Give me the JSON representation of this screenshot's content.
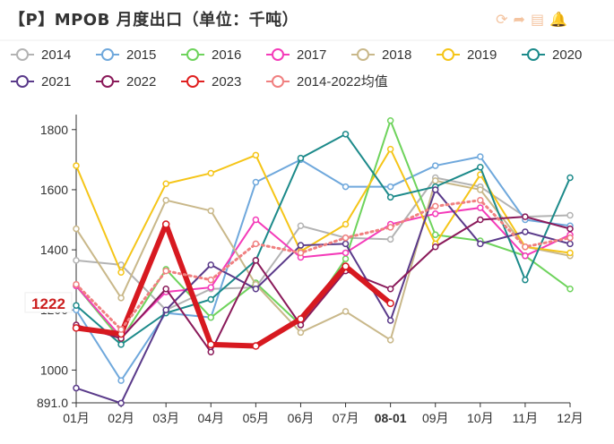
{
  "page": {
    "title": "【P】MPOB 月度出口（单位：千吨）",
    "toolbox": [
      "refresh-icon",
      "share-icon",
      "save-icon",
      "bell-icon"
    ]
  },
  "chart_data": {
    "type": "line",
    "title": "【P】MPOB 月度出口（单位：千吨）",
    "categories": [
      "01月",
      "02月",
      "03月",
      "04月",
      "05月",
      "06月",
      "07月",
      "08-01",
      "09月",
      "10月",
      "11月",
      "12月"
    ],
    "ylim": [
      891.0,
      1850
    ],
    "yticks": [
      891.0,
      1000,
      1200,
      1400,
      1600,
      1800
    ],
    "ytick_labels": [
      "891.0",
      "1000",
      "1200",
      "1400",
      "1600",
      "1800"
    ],
    "highlight_x_label": "08-01",
    "highlight_y_value": 1222,
    "highlight_y_label": "1222",
    "grid": false,
    "legend_position": "top",
    "series": [
      {
        "name": "2014",
        "color": "#b3b3b3",
        "values": [
          1365,
          1350,
          1200,
          1270,
          1275,
          1480,
          1440,
          1435,
          1640,
          1610,
          1510,
          1515
        ]
      },
      {
        "name": "2015",
        "color": "#6fa8dc",
        "values": [
          1200,
          965,
          1190,
          1175,
          1625,
          1700,
          1610,
          1610,
          1680,
          1710,
          1500,
          1480
        ]
      },
      {
        "name": "2016",
        "color": "#6ed35c",
        "values": [
          1280,
          1100,
          1335,
          1175,
          1290,
          1150,
          1370,
          1830,
          1450,
          1430,
          1380,
          1270
        ]
      },
      {
        "name": "2017",
        "color": "#f43bb9",
        "values": [
          1280,
          1110,
          1260,
          1275,
          1500,
          1375,
          1390,
          1485,
          1520,
          1540,
          1380,
          1450
        ]
      },
      {
        "name": "2018",
        "color": "#c9b88a",
        "values": [
          1470,
          1240,
          1565,
          1530,
          1285,
          1125,
          1195,
          1100,
          1630,
          1600,
          1410,
          1380
        ]
      },
      {
        "name": "2019",
        "color": "#f5c518",
        "values": [
          1680,
          1325,
          1620,
          1655,
          1715,
          1395,
          1485,
          1735,
          1420,
          1650,
          1410,
          1390
        ]
      },
      {
        "name": "2020",
        "color": "#1c8a8a",
        "values": [
          1215,
          1085,
          1190,
          1235,
          1365,
          1705,
          1785,
          1575,
          1610,
          1675,
          1300,
          1640
        ]
      },
      {
        "name": "2021",
        "color": "#5a3a8a",
        "values": [
          940,
          890,
          1200,
          1350,
          1270,
          1415,
          1420,
          1165,
          1600,
          1420,
          1460,
          1420
        ]
      },
      {
        "name": "2022",
        "color": "#8a1a5a",
        "values": [
          1150,
          1105,
          1270,
          1060,
          1365,
          1150,
          1330,
          1270,
          1410,
          1500,
          1510,
          1470
        ]
      },
      {
        "name": "2023",
        "color": "#e02020",
        "values": [
          1140,
          1120,
          1485,
          1085,
          1080,
          1170,
          1345,
          1222,
          null,
          null,
          null,
          null
        ]
      },
      {
        "name": "2014-2022均值",
        "color": "#f08080",
        "values": [
          1285,
          1135,
          1330,
          1300,
          1420,
          1390,
          1440,
          1475,
          1545,
          1565,
          1410,
          1440
        ]
      }
    ]
  }
}
